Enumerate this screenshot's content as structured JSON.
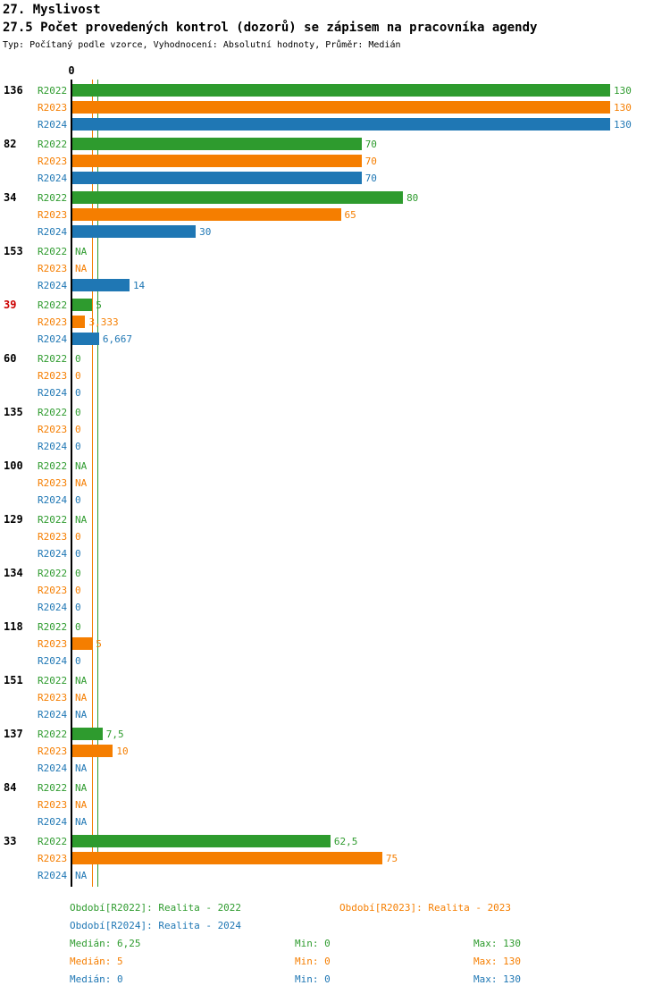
{
  "colors": {
    "R2022": "#2e9b2e",
    "R2023": "#f57e00",
    "R2024": "#1f77b4",
    "alert": "#cc0000",
    "axis": "#000000"
  },
  "chart_data": {
    "type": "bar",
    "orientation": "horizontal",
    "title": "27. Myslivost",
    "subtitle": "27.5 Počet provedených kontrol (dozorů) se zápisem na pracovníka agendy",
    "meta": "Typ: Počítaný podle vzorce, Vyhodnocení: Absolutní hodnoty, Průměr: Medián",
    "xlim": [
      0,
      130
    ],
    "x_tick_labels": [
      "0"
    ],
    "legend_position": "bottom",
    "series_names": [
      "R2022",
      "R2023",
      "R2024"
    ],
    "medians": [
      6.25,
      5,
      0
    ],
    "groups": [
      {
        "label": "136",
        "alert": false,
        "values": [
          130,
          130,
          130
        ],
        "displays": [
          "130",
          "130",
          "130"
        ]
      },
      {
        "label": "82",
        "alert": false,
        "values": [
          70,
          70,
          70
        ],
        "displays": [
          "70",
          "70",
          "70"
        ]
      },
      {
        "label": "34",
        "alert": false,
        "values": [
          80,
          65,
          30
        ],
        "displays": [
          "80",
          "65",
          "30"
        ]
      },
      {
        "label": "153",
        "alert": false,
        "values": [
          null,
          null,
          14
        ],
        "displays": [
          "NA",
          "NA",
          "14"
        ]
      },
      {
        "label": "39",
        "alert": true,
        "values": [
          5,
          3.333,
          6.667
        ],
        "displays": [
          "5",
          "3,333",
          "6,667"
        ]
      },
      {
        "label": "60",
        "alert": false,
        "values": [
          0,
          0,
          0
        ],
        "displays": [
          "0",
          "0",
          "0"
        ]
      },
      {
        "label": "135",
        "alert": false,
        "values": [
          0,
          0,
          0
        ],
        "displays": [
          "0",
          "0",
          "0"
        ]
      },
      {
        "label": "100",
        "alert": false,
        "values": [
          null,
          null,
          0
        ],
        "displays": [
          "NA",
          "NA",
          "0"
        ]
      },
      {
        "label": "129",
        "alert": false,
        "values": [
          null,
          0,
          0
        ],
        "displays": [
          "NA",
          "0",
          "0"
        ]
      },
      {
        "label": "134",
        "alert": false,
        "values": [
          0,
          0,
          0
        ],
        "displays": [
          "0",
          "0",
          "0"
        ]
      },
      {
        "label": "118",
        "alert": false,
        "values": [
          0,
          5,
          0
        ],
        "displays": [
          "0",
          "5",
          "0"
        ]
      },
      {
        "label": "151",
        "alert": false,
        "values": [
          null,
          null,
          null
        ],
        "displays": [
          "NA",
          "NA",
          "NA"
        ]
      },
      {
        "label": "137",
        "alert": false,
        "values": [
          7.5,
          10,
          null
        ],
        "displays": [
          "7,5",
          "10",
          "NA"
        ]
      },
      {
        "label": "84",
        "alert": false,
        "values": [
          null,
          null,
          null
        ],
        "displays": [
          "NA",
          "NA",
          "NA"
        ]
      },
      {
        "label": "33",
        "alert": false,
        "values": [
          62.5,
          75,
          null
        ],
        "displays": [
          "62,5",
          "75",
          "NA"
        ]
      }
    ]
  },
  "legend": {
    "periods": [
      {
        "series": "R2022",
        "label": "Období[R2022]: Realita - 2022"
      },
      {
        "series": "R2023",
        "label": "Období[R2023]: Realita - 2023"
      },
      {
        "series": "R2024",
        "label": "Období[R2024]: Realita - 2024"
      }
    ],
    "stats": [
      {
        "series": "R2022",
        "median": "Medián: 6,25",
        "min": "Min: 0",
        "max": "Max: 130"
      },
      {
        "series": "R2023",
        "median": "Medián: 5",
        "min": "Min: 0",
        "max": "Max: 130"
      },
      {
        "series": "R2024",
        "median": "Medián: 0",
        "min": "Min: 0",
        "max": "Max: 130"
      }
    ]
  }
}
